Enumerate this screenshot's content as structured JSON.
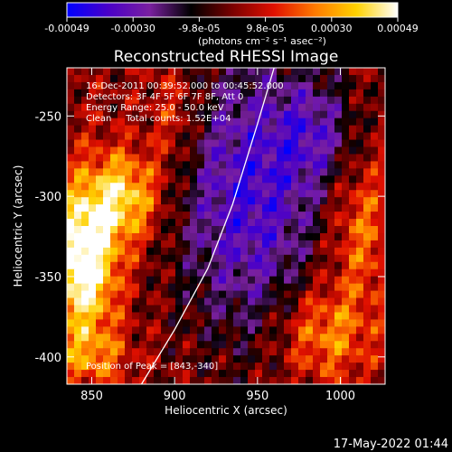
{
  "colorbar": {
    "ticks": [
      "-0.00049",
      "-0.00030",
      "-9.8e-05",
      "9.8e-05",
      "0.00030",
      "0.00049"
    ],
    "unit_label": "(photons cm⁻² s⁻¹ asec⁻²)",
    "colors": [
      "#0000ff",
      "#4a00c8",
      "#7a20a0",
      "#000000",
      "#7a0000",
      "#e01000",
      "#ff7a00",
      "#ffd200",
      "#ffffff"
    ]
  },
  "chart_data": {
    "type": "heatmap",
    "title": "Reconstructed RHESSI Image",
    "xlabel": "Heliocentric X (arcsec)",
    "ylabel": "Heliocentric Y (arcsec)",
    "xlim": [
      835,
      1027
    ],
    "ylim": [
      -417,
      -220
    ],
    "x_ticks": [
      850,
      900,
      950,
      1000
    ],
    "y_ticks": [
      -250,
      -300,
      -350,
      -400
    ],
    "annotations": [
      "16-Dec-2011 00:39:52.000 to 00:45:52.000",
      "Detectors: 3F 4F 5F 6F 7F 8F, Att 0",
      "Energy Range: 25.0 - 50.0 keV",
      "Clean     Total counts: 1.52E+04"
    ],
    "peak_label": "Position of Peak = [843,-340]",
    "peak": [
      843,
      -340
    ],
    "limb": [
      [
        880,
        -417
      ],
      [
        900,
        -383
      ],
      [
        920,
        -345
      ],
      [
        935,
        -305
      ],
      [
        950,
        -255
      ],
      [
        960,
        -220
      ]
    ],
    "grid": false
  },
  "timestamp": "17-May-2022 01:44"
}
